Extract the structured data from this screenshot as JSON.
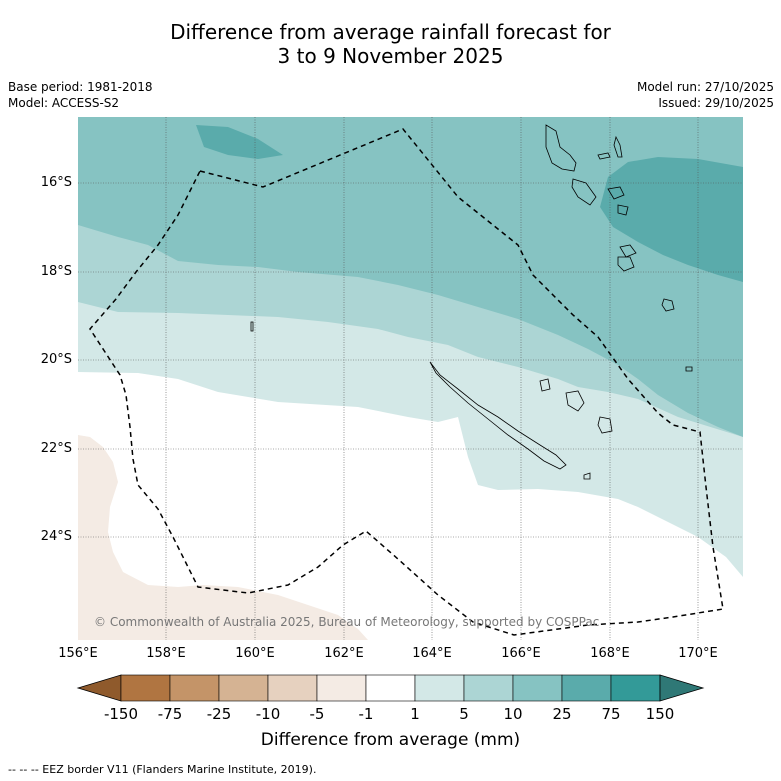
{
  "header": {
    "title_line1": "Difference from average rainfall forecast for",
    "title_line2": "3 to 9 November 2025"
  },
  "meta": {
    "base_period": "Base period: 1981-2018",
    "model": "Model: ACCESS-S2",
    "model_run": "Model run: 27/10/2025",
    "issued": "Issued: 29/10/2025"
  },
  "map": {
    "copyright": "© Commonwealth of Australia 2025, Bureau of Meteorology, supported by COSPPac",
    "lat_labels": [
      "16°S",
      "18°S",
      "20°S",
      "22°S",
      "24°S"
    ],
    "lon_labels": [
      "156°E",
      "158°E",
      "160°E",
      "162°E",
      "164°E",
      "166°E",
      "168°E",
      "170°E"
    ]
  },
  "colorbar": {
    "ticks": [
      "-150",
      "-75",
      "-25",
      "-10",
      "-5",
      "-1",
      "1",
      "5",
      "10",
      "25",
      "75",
      "150"
    ],
    "colors": [
      "#8f5a2c",
      "#b07541",
      "#c49468",
      "#d5b393",
      "#e6d1bf",
      "#f4ebe4",
      "#ffffff",
      "#d3e8e7",
      "#acd5d4",
      "#86c3c2",
      "#5aabab",
      "#339a98",
      "#2f7876"
    ],
    "label": "Difference from average (mm)"
  },
  "legend": {
    "eez": "--  --  -- EEZ border V11 (Flanders Marine Institute, 2019)."
  }
}
